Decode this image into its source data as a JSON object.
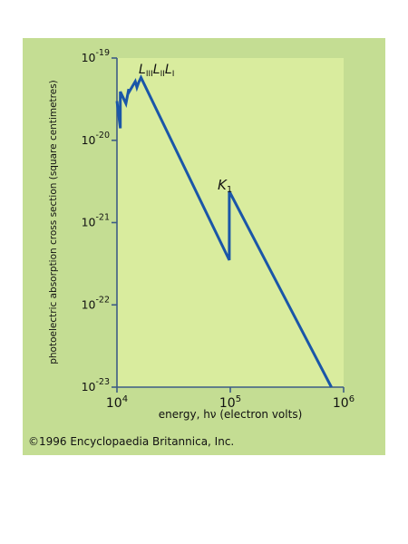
{
  "colors": {
    "panel_background": "#c4dd93",
    "plot_background": "#d9ec9e",
    "curve": "#1a56a8",
    "frame": "#3d5c85"
  },
  "chart_data": {
    "type": "line",
    "title": "",
    "xlabel": "energy, hν (electron volts)",
    "ylabel": "photoelectric absorption cross section (square centimetres)",
    "x_scale": "log",
    "y_scale": "log",
    "xlim": [
      10000,
      1000000
    ],
    "ylim": [
      1e-23,
      1e-19
    ],
    "x_ticks": [
      {
        "value": 10000,
        "base": "10",
        "exp": "4"
      },
      {
        "value": 100000,
        "base": "10",
        "exp": "5"
      },
      {
        "value": 1000000,
        "base": "10",
        "exp": "6"
      }
    ],
    "y_ticks": [
      {
        "value": 1e-19,
        "base": "10",
        "exp": "-19"
      },
      {
        "value": 1e-20,
        "base": "10",
        "exp": "-20"
      },
      {
        "value": 1e-21,
        "base": "10",
        "exp": "-21"
      },
      {
        "value": 1e-22,
        "base": "10",
        "exp": "-22"
      },
      {
        "value": 1e-23,
        "base": "10",
        "exp": "-23"
      }
    ],
    "grid": false,
    "series": [
      {
        "x": [
          10000,
          10700,
          10700,
          12000,
          12700,
          12700,
          14500,
          15000,
          15500,
          16300,
          98000,
          98000,
          780000
        ],
        "y": [
          3e-20,
          1.4e-20,
          3.9e-20,
          2.8e-20,
          4.2e-20,
          3.8e-20,
          5.2e-20,
          4.4e-20,
          5e-20,
          5.8e-20,
          3.5e-22,
          2.4e-21,
          1e-23
        ]
      }
    ],
    "annotations": [
      {
        "label": "LIIILIILI",
        "x": 14500,
        "y": 5.8e-20
      },
      {
        "label": "K1",
        "x": 98000,
        "y": 2.4e-21
      }
    ]
  },
  "copyright": "©1996 Encyclopaedia Britannica, Inc."
}
